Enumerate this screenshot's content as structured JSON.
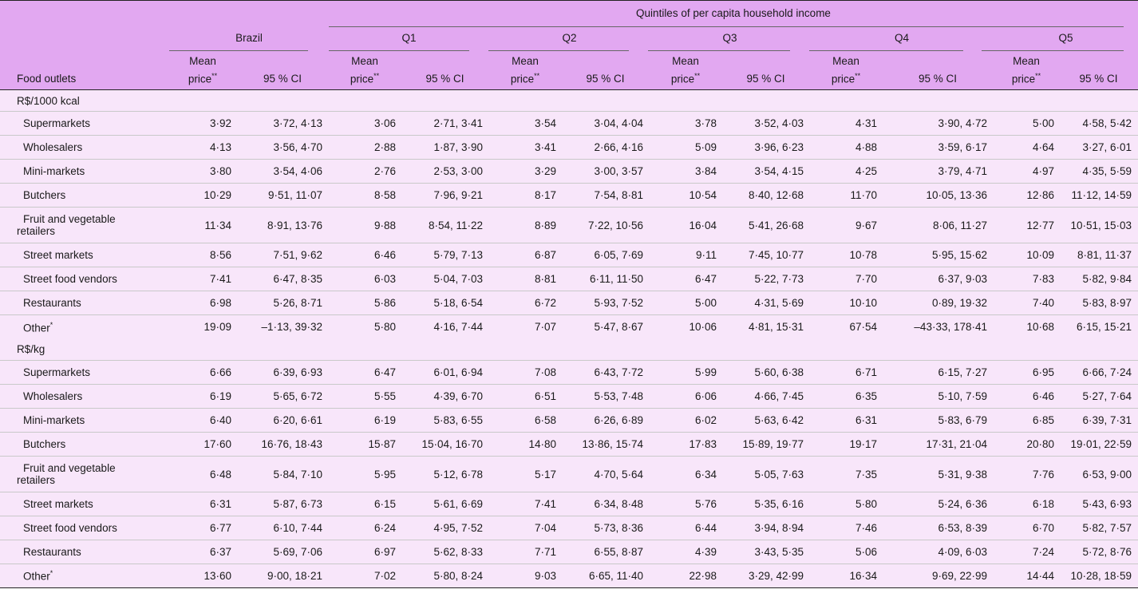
{
  "header": {
    "quintiles_title": "Quintiles of per capita household income",
    "food_outlets": "Food outlets",
    "groups": [
      "Brazil",
      "Q1",
      "Q2",
      "Q3",
      "Q4",
      "Q5"
    ],
    "mean_line1": "Mean",
    "mean_line2": "price",
    "mean_sup": "**",
    "ci_label": "95 % CI"
  },
  "sections": [
    {
      "label": "R$/1000 kcal",
      "rows": [
        {
          "name": "Supermarkets",
          "sup": "",
          "cells": [
            "3·92",
            "3·72, 4·13",
            "3·06",
            "2·71, 3·41",
            "3·54",
            "3·04, 4·04",
            "3·78",
            "3·52, 4·03",
            "4·31",
            "3·90, 4·72",
            "5·00",
            "4·58, 5·42"
          ]
        },
        {
          "name": "Wholesalers",
          "sup": "",
          "cells": [
            "4·13",
            "3·56, 4·70",
            "2·88",
            "1·87, 3·90",
            "3·41",
            "2·66, 4·16",
            "5·09",
            "3·96, 6·23",
            "4·88",
            "3·59, 6·17",
            "4·64",
            "3·27, 6·01"
          ]
        },
        {
          "name": "Mini-markets",
          "sup": "",
          "cells": [
            "3·80",
            "3·54, 4·06",
            "2·76",
            "2·53, 3·00",
            "3·29",
            "3·00, 3·57",
            "3·84",
            "3·54, 4·15",
            "4·25",
            "3·79, 4·71",
            "4·97",
            "4·35, 5·59"
          ]
        },
        {
          "name": "Butchers",
          "sup": "",
          "cells": [
            "10·29",
            "9·51, 11·07",
            "8·58",
            "7·96, 9·21",
            "8·17",
            "7·54, 8·81",
            "10·54",
            "8·40, 12·68",
            "11·70",
            "10·05, 13·36",
            "12·86",
            "11·12, 14·59"
          ]
        },
        {
          "name": "Fruit and vegetable",
          "name2": "retailers",
          "sup": "",
          "cells": [
            "11·34",
            "8·91, 13·76",
            "9·88",
            "8·54, 11·22",
            "8·89",
            "7·22, 10·56",
            "16·04",
            "5·41, 26·68",
            "9·67",
            "8·06, 11·27",
            "12·77",
            "10·51, 15·03"
          ]
        },
        {
          "name": "Street markets",
          "sup": "",
          "cells": [
            "8·56",
            "7·51, 9·62",
            "6·46",
            "5·79, 7·13",
            "6·87",
            "6·05, 7·69",
            "9·11",
            "7·45, 10·77",
            "10·78",
            "5·95, 15·62",
            "10·09",
            "8·81, 11·37"
          ]
        },
        {
          "name": "Street food vendors",
          "sup": "",
          "cells": [
            "7·41",
            "6·47, 8·35",
            "6·03",
            "5·04, 7·03",
            "8·81",
            "6·11, 11·50",
            "6·47",
            "5·22, 7·73",
            "7·70",
            "6·37, 9·03",
            "7·83",
            "5·82, 9·84"
          ]
        },
        {
          "name": "Restaurants",
          "sup": "",
          "cells": [
            "6·98",
            "5·26, 8·71",
            "5·86",
            "5·18, 6·54",
            "6·72",
            "5·93, 7·52",
            "5·00",
            "4·31, 5·69",
            "10·10",
            "0·89, 19·32",
            "7·40",
            "5·83, 8·97"
          ]
        },
        {
          "name": "Other",
          "sup": "*",
          "cells": [
            "19·09",
            "–1·13, 39·32",
            "5·80",
            "4·16, 7·44",
            "7·07",
            "5·47, 8·67",
            "10·06",
            "4·81, 15·31",
            "67·54",
            "–43·33, 178·41",
            "10·68",
            "6·15, 15·21"
          ]
        }
      ]
    },
    {
      "label": "R$/kg",
      "rows": [
        {
          "name": "Supermarkets",
          "sup": "",
          "cells": [
            "6·66",
            "6·39, 6·93",
            "6·47",
            "6·01, 6·94",
            "7·08",
            "6·43, 7·72",
            "5·99",
            "5·60, 6·38",
            "6·71",
            "6·15, 7·27",
            "6·95",
            "6·66, 7·24"
          ]
        },
        {
          "name": "Wholesalers",
          "sup": "",
          "cells": [
            "6·19",
            "5·65, 6·72",
            "5·55",
            "4·39, 6·70",
            "6·51",
            "5·53, 7·48",
            "6·06",
            "4·66, 7·45",
            "6·35",
            "5·10, 7·59",
            "6·46",
            "5·27, 7·64"
          ]
        },
        {
          "name": "Mini-markets",
          "sup": "",
          "cells": [
            "6·40",
            "6·20, 6·61",
            "6·19",
            "5·83, 6·55",
            "6·58",
            "6·26, 6·89",
            "6·02",
            "5·63, 6·42",
            "6·31",
            "5·83, 6·79",
            "6·85",
            "6·39, 7·31"
          ]
        },
        {
          "name": "Butchers",
          "sup": "",
          "cells": [
            "17·60",
            "16·76, 18·43",
            "15·87",
            "15·04, 16·70",
            "14·80",
            "13·86, 15·74",
            "17·83",
            "15·89, 19·77",
            "19·17",
            "17·31, 21·04",
            "20·80",
            "19·01, 22·59"
          ]
        },
        {
          "name": "Fruit and vegetable",
          "name2": "retailers",
          "sup": "",
          "cells": [
            "6·48",
            "5·84, 7·10",
            "5·95",
            "5·12, 6·78",
            "5·17",
            "4·70, 5·64",
            "6·34",
            "5·05, 7·63",
            "7·35",
            "5·31, 9·38",
            "7·76",
            "6·53, 9·00"
          ]
        },
        {
          "name": "Street markets",
          "sup": "",
          "cells": [
            "6·31",
            "5·87, 6·73",
            "6·15",
            "5·61, 6·69",
            "7·41",
            "6·34, 8·48",
            "5·76",
            "5·35, 6·16",
            "5·80",
            "5·24, 6·36",
            "6·18",
            "5·43, 6·93"
          ]
        },
        {
          "name": "Street food vendors",
          "sup": "",
          "cells": [
            "6·77",
            "6·10, 7·44",
            "6·24",
            "4·95, 7·52",
            "7·04",
            "5·73, 8·36",
            "6·44",
            "3·94, 8·94",
            "7·46",
            "6·53, 8·39",
            "6·70",
            "5·82, 7·57"
          ]
        },
        {
          "name": "Restaurants",
          "sup": "",
          "cells": [
            "6·37",
            "5·69, 7·06",
            "6·97",
            "5·62, 8·33",
            "7·71",
            "6·55, 8·87",
            "4·39",
            "3·43, 5·35",
            "5·06",
            "4·09, 6·03",
            "7·24",
            "5·72, 8·76"
          ]
        },
        {
          "name": "Other",
          "sup": "*",
          "cells": [
            "13·60",
            "9·00, 18·21",
            "7·02",
            "5·80, 8·24",
            "9·03",
            "6·65, 11·40",
            "22·98",
            "3·29, 42·99",
            "16·34",
            "9·69, 22·99",
            "14·44",
            "10·28, 18·59"
          ]
        }
      ]
    }
  ]
}
